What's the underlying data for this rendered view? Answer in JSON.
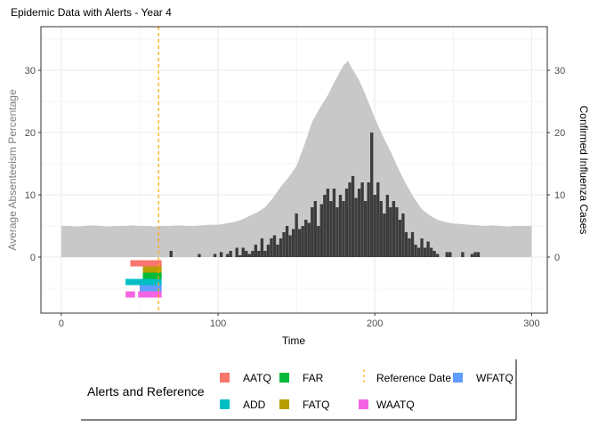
{
  "chart_data": {
    "type": "bar",
    "title": "Epidemic Data with Alerts - Year 4",
    "xlabel": "Time",
    "ylabel_left": "Average Absenteeism Percentage",
    "ylabel_right": "Confirmed Influenza Cases",
    "xlim": [
      -13,
      310
    ],
    "ylim": [
      -9,
      37
    ],
    "x_ticks": [
      0,
      100,
      200,
      300
    ],
    "y_ticks": [
      0,
      10,
      20,
      30
    ],
    "y_ticks_right": [
      0,
      10,
      20,
      30
    ],
    "grid": true,
    "reference_date": 62,
    "absenteeism": {
      "days": [
        0,
        5,
        10,
        15,
        20,
        25,
        30,
        35,
        40,
        45,
        50,
        55,
        60,
        65,
        70,
        75,
        80,
        85,
        90,
        95,
        100,
        105,
        110,
        115,
        120,
        125,
        130,
        135,
        140,
        145,
        150,
        155,
        160,
        165,
        170,
        175,
        180,
        183,
        185,
        190,
        195,
        200,
        205,
        210,
        215,
        220,
        225,
        230,
        235,
        240,
        245,
        250,
        255,
        260,
        265,
        270,
        275,
        280,
        285,
        290,
        295,
        300
      ],
      "values": [
        5,
        5,
        4.9,
        5,
        5.1,
        5,
        4.9,
        5,
        5,
        5.1,
        5,
        5,
        4.9,
        5,
        5,
        5.1,
        5,
        5,
        5.1,
        5.2,
        5.2,
        5.4,
        5.6,
        6,
        6.6,
        7.2,
        8,
        9.5,
        11.3,
        12.8,
        14.6,
        18,
        21.7,
        24,
        26,
        28.5,
        30.8,
        31.5,
        30.5,
        28.4,
        25.5,
        22.3,
        19.5,
        17,
        14.2,
        11.7,
        9.5,
        7.7,
        6.7,
        6,
        5.6,
        5.4,
        5.3,
        5.2,
        5.1,
        5,
        5.1,
        5,
        4.9,
        5,
        5,
        5
      ],
      "color": "#c8c8c8"
    },
    "cases": {
      "start_day": 0,
      "step_days": 2,
      "values": [
        0,
        0,
        0,
        0,
        0,
        0,
        0,
        0,
        0,
        0,
        0,
        0,
        0,
        0,
        0,
        0,
        0,
        0,
        0,
        0,
        0,
        0,
        0,
        0,
        0,
        0,
        0,
        0,
        0,
        0,
        0,
        0,
        0,
        0,
        0,
        1,
        0,
        0,
        0,
        0,
        0,
        0,
        0,
        0,
        0.5,
        0,
        0,
        0,
        0,
        0.5,
        0,
        0.8,
        0,
        0.5,
        1,
        0,
        1.5,
        0.3,
        1.5,
        1,
        0.5,
        1,
        2,
        1,
        3,
        1,
        2,
        3,
        3.5,
        2,
        3,
        4,
        5,
        3.5,
        4.5,
        7,
        4.5,
        5,
        6,
        5.5,
        8,
        9,
        5,
        8.5,
        10,
        11,
        9,
        11,
        8,
        10,
        9,
        11,
        12,
        13,
        9.5,
        11,
        12,
        9,
        12,
        20,
        10,
        12,
        9,
        7,
        10,
        8,
        9,
        8,
        6,
        7,
        4,
        3,
        4,
        2,
        1.5,
        3,
        1.5,
        2.5,
        1.5,
        1,
        0.5,
        0,
        0,
        0.8,
        0.8,
        0,
        0,
        0,
        0.8,
        0,
        0,
        0.5,
        0.8,
        0.8,
        0,
        0,
        0,
        0,
        0,
        0,
        0,
        0,
        0,
        0,
        0,
        0,
        0,
        0,
        0,
        0
      ],
      "color": "#3c3c3c"
    },
    "alerts": [
      {
        "name": "AATQ",
        "level": -1,
        "color": "#F8766D",
        "ranges": [
          [
            44,
            64
          ]
        ]
      },
      {
        "name": "FATQ",
        "level": -2,
        "color": "#B79F00",
        "ranges": [
          [
            52,
            64
          ]
        ]
      },
      {
        "name": "FAR",
        "level": -3,
        "color": "#00BA38",
        "ranges": [
          [
            52,
            64
          ]
        ]
      },
      {
        "name": "ADD",
        "level": -4,
        "color": "#00BFC4",
        "ranges": [
          [
            41,
            64
          ]
        ]
      },
      {
        "name": "WFATQ",
        "level": -5,
        "color": "#619CFF",
        "ranges": [
          [
            50,
            64
          ]
        ]
      },
      {
        "name": "WAATQ",
        "level": -6,
        "color": "#F564E3",
        "ranges": [
          [
            41,
            47
          ],
          [
            49,
            64
          ]
        ]
      }
    ],
    "reference_color": "#FFA500",
    "legend": {
      "title": "Alerts and Reference",
      "placement": "bottom",
      "entries": [
        {
          "label": "AATQ",
          "color": "#F8766D",
          "kind": "square"
        },
        {
          "label": "FAR",
          "color": "#00BA38",
          "kind": "square"
        },
        {
          "label": "Reference Date",
          "color": "#FFA500",
          "kind": "dashed-line"
        },
        {
          "label": "WFATQ",
          "color": "#619CFF",
          "kind": "square"
        },
        {
          "label": "ADD",
          "color": "#00BFC4",
          "kind": "square"
        },
        {
          "label": "FATQ",
          "color": "#B79F00",
          "kind": "square"
        },
        {
          "label": "WAATQ",
          "color": "#F564E3",
          "kind": "square"
        }
      ]
    }
  }
}
